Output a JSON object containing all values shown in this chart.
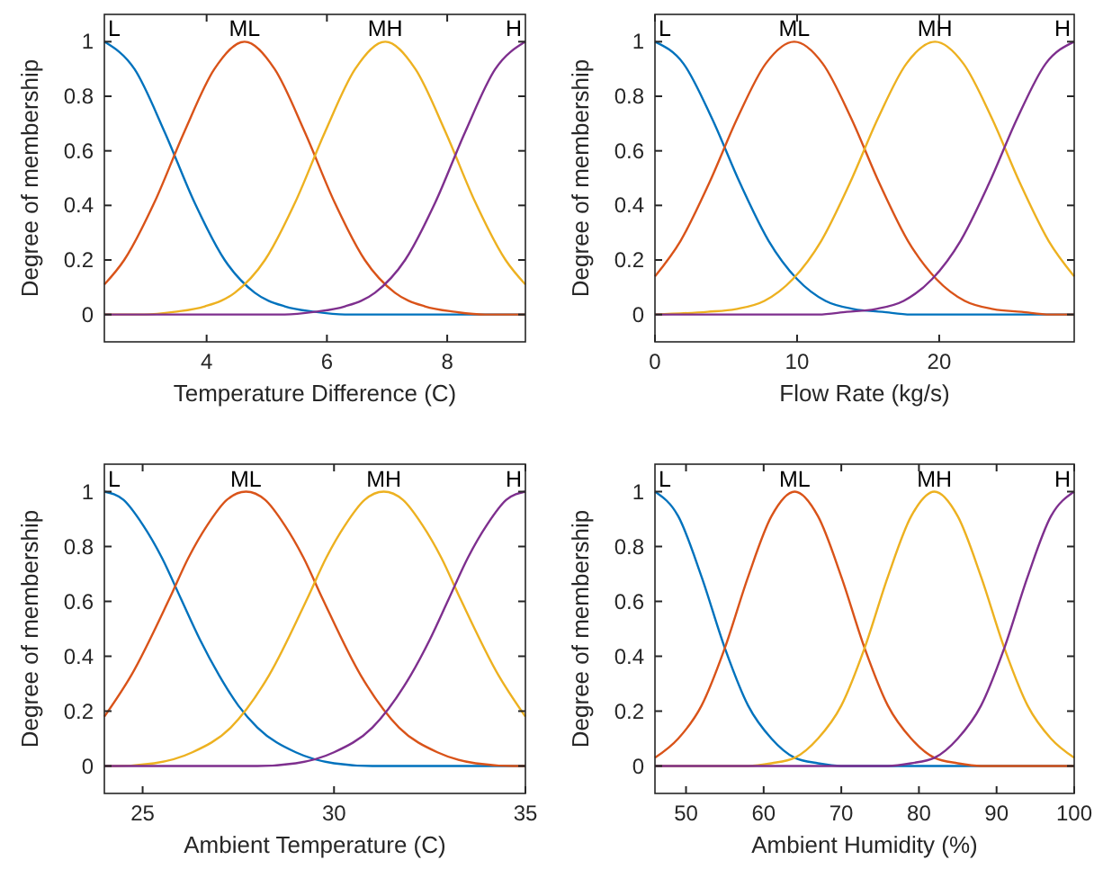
{
  "chart_data": [
    {
      "type": "line",
      "xlabel": "Temperature Difference (C)",
      "ylabel": "Degree of membership",
      "xlim": [
        2.3,
        9.3
      ],
      "xticks": [
        4,
        6,
        8
      ],
      "ylim": [
        -0.1,
        1.1
      ],
      "yticks": [
        0,
        0.2,
        0.4,
        0.6,
        0.8,
        1
      ],
      "series": [
        {
          "name": "L",
          "color": "#0072bd",
          "x": [
            2.3,
            2.8,
            3.3,
            3.8,
            4.3,
            4.8,
            5.3,
            5.8,
            6.3,
            7.3,
            9.3
          ],
          "values": [
            1,
            0.9,
            0.67,
            0.41,
            0.2,
            0.08,
            0.03,
            0.01,
            0,
            0,
            0
          ]
        },
        {
          "name": "ML",
          "color": "#d95319",
          "x": [
            2.3,
            2.63,
            3.13,
            3.63,
            4.13,
            4.63,
            5.13,
            5.63,
            6.13,
            6.63,
            7.13,
            7.63,
            8.13,
            8.63,
            9.3
          ],
          "values": [
            0.11,
            0.2,
            0.41,
            0.67,
            0.9,
            1,
            0.9,
            0.67,
            0.41,
            0.2,
            0.08,
            0.03,
            0.01,
            0,
            0
          ]
        },
        {
          "name": "MH",
          "color": "#edb120",
          "x": [
            2.3,
            2.97,
            3.47,
            3.97,
            4.47,
            4.97,
            5.47,
            5.97,
            6.47,
            6.97,
            7.47,
            7.97,
            8.47,
            8.97,
            9.3
          ],
          "values": [
            0,
            0,
            0.01,
            0.03,
            0.08,
            0.2,
            0.41,
            0.67,
            0.9,
            1,
            0.9,
            0.67,
            0.41,
            0.2,
            0.11
          ]
        },
        {
          "name": "H",
          "color": "#7e2f8e",
          "x": [
            2.3,
            5.3,
            5.8,
            6.3,
            6.8,
            7.3,
            7.8,
            8.3,
            8.8,
            9.3
          ],
          "values": [
            0,
            0,
            0.01,
            0.03,
            0.08,
            0.2,
            0.41,
            0.67,
            0.9,
            1
          ]
        }
      ]
    },
    {
      "type": "line",
      "xlabel": "Flow Rate (kg/s)",
      "ylabel": "Degree of membership",
      "xlim": [
        0,
        29.5
      ],
      "xticks": [
        0,
        10,
        20
      ],
      "ylim": [
        -0.1,
        1.1
      ],
      "yticks": [
        0,
        0.2,
        0.4,
        0.6,
        0.8,
        1
      ],
      "series": [
        {
          "name": "L",
          "color": "#0072bd",
          "x": [
            0,
            2,
            4,
            6,
            8,
            10,
            12,
            14,
            16,
            18,
            29.5
          ],
          "values": [
            1,
            0.92,
            0.72,
            0.48,
            0.27,
            0.13,
            0.05,
            0.02,
            0.01,
            0,
            0
          ]
        },
        {
          "name": "ML",
          "color": "#d95319",
          "x": [
            0,
            1.8,
            3.8,
            5.8,
            7.8,
            9.8,
            11.8,
            13.8,
            15.8,
            17.8,
            19.8,
            21.8,
            23.8,
            25.8,
            27.8,
            29.5
          ],
          "values": [
            0.14,
            0.27,
            0.48,
            0.72,
            0.92,
            1,
            0.92,
            0.72,
            0.48,
            0.27,
            0.13,
            0.05,
            0.02,
            0.01,
            0,
            0
          ]
        },
        {
          "name": "MH",
          "color": "#edb120",
          "x": [
            0,
            3.7,
            5.7,
            7.7,
            9.7,
            11.7,
            13.7,
            15.7,
            17.7,
            19.7,
            21.7,
            23.7,
            25.7,
            27.7,
            29.5
          ],
          "values": [
            0,
            0.01,
            0.02,
            0.05,
            0.13,
            0.27,
            0.48,
            0.72,
            0.92,
            1,
            0.92,
            0.72,
            0.48,
            0.27,
            0.14
          ]
        },
        {
          "name": "H",
          "color": "#7e2f8e",
          "x": [
            0,
            11.5,
            13.5,
            15.5,
            17.5,
            19.5,
            21.5,
            23.5,
            25.5,
            27.5,
            29.5
          ],
          "values": [
            0,
            0,
            0.01,
            0.02,
            0.05,
            0.13,
            0.27,
            0.48,
            0.72,
            0.92,
            1
          ]
        }
      ]
    },
    {
      "type": "line",
      "xlabel": "Ambient Temperature (C)",
      "ylabel": "Degree of membership",
      "xlim": [
        24,
        35
      ],
      "xticks": [
        25,
        30,
        35
      ],
      "ylim": [
        -0.1,
        1.1
      ],
      "yticks": [
        0,
        0.2,
        0.4,
        0.6,
        0.8,
        1
      ],
      "series": [
        {
          "name": "L",
          "color": "#0072bd",
          "x": [
            24,
            24.5,
            25,
            25.5,
            26,
            26.5,
            27,
            27.5,
            28,
            29,
            30,
            31,
            35
          ],
          "values": [
            1,
            0.97,
            0.88,
            0.76,
            0.61,
            0.46,
            0.33,
            0.22,
            0.14,
            0.05,
            0.01,
            0,
            0
          ]
        },
        {
          "name": "ML",
          "color": "#d95319",
          "x": [
            24,
            24.7,
            25.7,
            26.2,
            26.7,
            27.2,
            27.7,
            28.2,
            28.7,
            29.2,
            29.7,
            30.7,
            31.7,
            32.7,
            33.7,
            34.7,
            35
          ],
          "values": [
            0.18,
            0.33,
            0.61,
            0.76,
            0.88,
            0.97,
            1,
            0.97,
            0.88,
            0.76,
            0.61,
            0.33,
            0.14,
            0.05,
            0.01,
            0,
            0
          ]
        },
        {
          "name": "MH",
          "color": "#edb120",
          "x": [
            24,
            24.3,
            25.3,
            26.3,
            27.3,
            28.3,
            29.3,
            29.8,
            30.3,
            30.8,
            31.3,
            31.8,
            32.3,
            32.8,
            33.3,
            34.3,
            35
          ],
          "values": [
            0,
            0,
            0.01,
            0.05,
            0.14,
            0.33,
            0.61,
            0.76,
            0.88,
            0.97,
            1,
            0.97,
            0.88,
            0.76,
            0.61,
            0.33,
            0.18
          ]
        },
        {
          "name": "H",
          "color": "#7e2f8e",
          "x": [
            24,
            28,
            29,
            30,
            31,
            32,
            32.5,
            33,
            33.5,
            34,
            34.5,
            35
          ],
          "values": [
            0,
            0,
            0.01,
            0.05,
            0.14,
            0.33,
            0.46,
            0.61,
            0.76,
            0.88,
            0.97,
            1
          ]
        }
      ]
    },
    {
      "type": "line",
      "xlabel": "Ambient Humidity (%)",
      "ylabel": "Degree of membership",
      "xlim": [
        46,
        100
      ],
      "xticks": [
        50,
        60,
        70,
        80,
        90,
        100
      ],
      "ylim": [
        -0.1,
        1.1
      ],
      "yticks": [
        0,
        0.2,
        0.4,
        0.6,
        0.8,
        1
      ],
      "series": [
        {
          "name": "L",
          "color": "#0072bd",
          "x": [
            46,
            49,
            52,
            55,
            58,
            61,
            64,
            67,
            70,
            100
          ],
          "values": [
            1,
            0.91,
            0.69,
            0.43,
            0.22,
            0.1,
            0.03,
            0.01,
            0,
            0
          ]
        },
        {
          "name": "ML",
          "color": "#d95319",
          "x": [
            46,
            49,
            52,
            55,
            58,
            61,
            64,
            67,
            70,
            73,
            76,
            79,
            82,
            85,
            88,
            100
          ],
          "values": [
            0.03,
            0.1,
            0.22,
            0.43,
            0.69,
            0.91,
            1,
            0.91,
            0.69,
            0.43,
            0.22,
            0.1,
            0.03,
            0.01,
            0,
            0
          ]
        },
        {
          "name": "MH",
          "color": "#edb120",
          "x": [
            46,
            58,
            61,
            64,
            67,
            70,
            73,
            76,
            79,
            82,
            85,
            88,
            91,
            94,
            97,
            100
          ],
          "values": [
            0,
            0,
            0.01,
            0.03,
            0.1,
            0.22,
            0.43,
            0.69,
            0.91,
            1,
            0.91,
            0.69,
            0.43,
            0.22,
            0.1,
            0.03
          ]
        },
        {
          "name": "H",
          "color": "#7e2f8e",
          "x": [
            46,
            76,
            79,
            82,
            85,
            88,
            91,
            94,
            97,
            100
          ],
          "values": [
            0,
            0,
            0.01,
            0.03,
            0.1,
            0.22,
            0.43,
            0.69,
            0.91,
            1
          ]
        }
      ]
    }
  ]
}
